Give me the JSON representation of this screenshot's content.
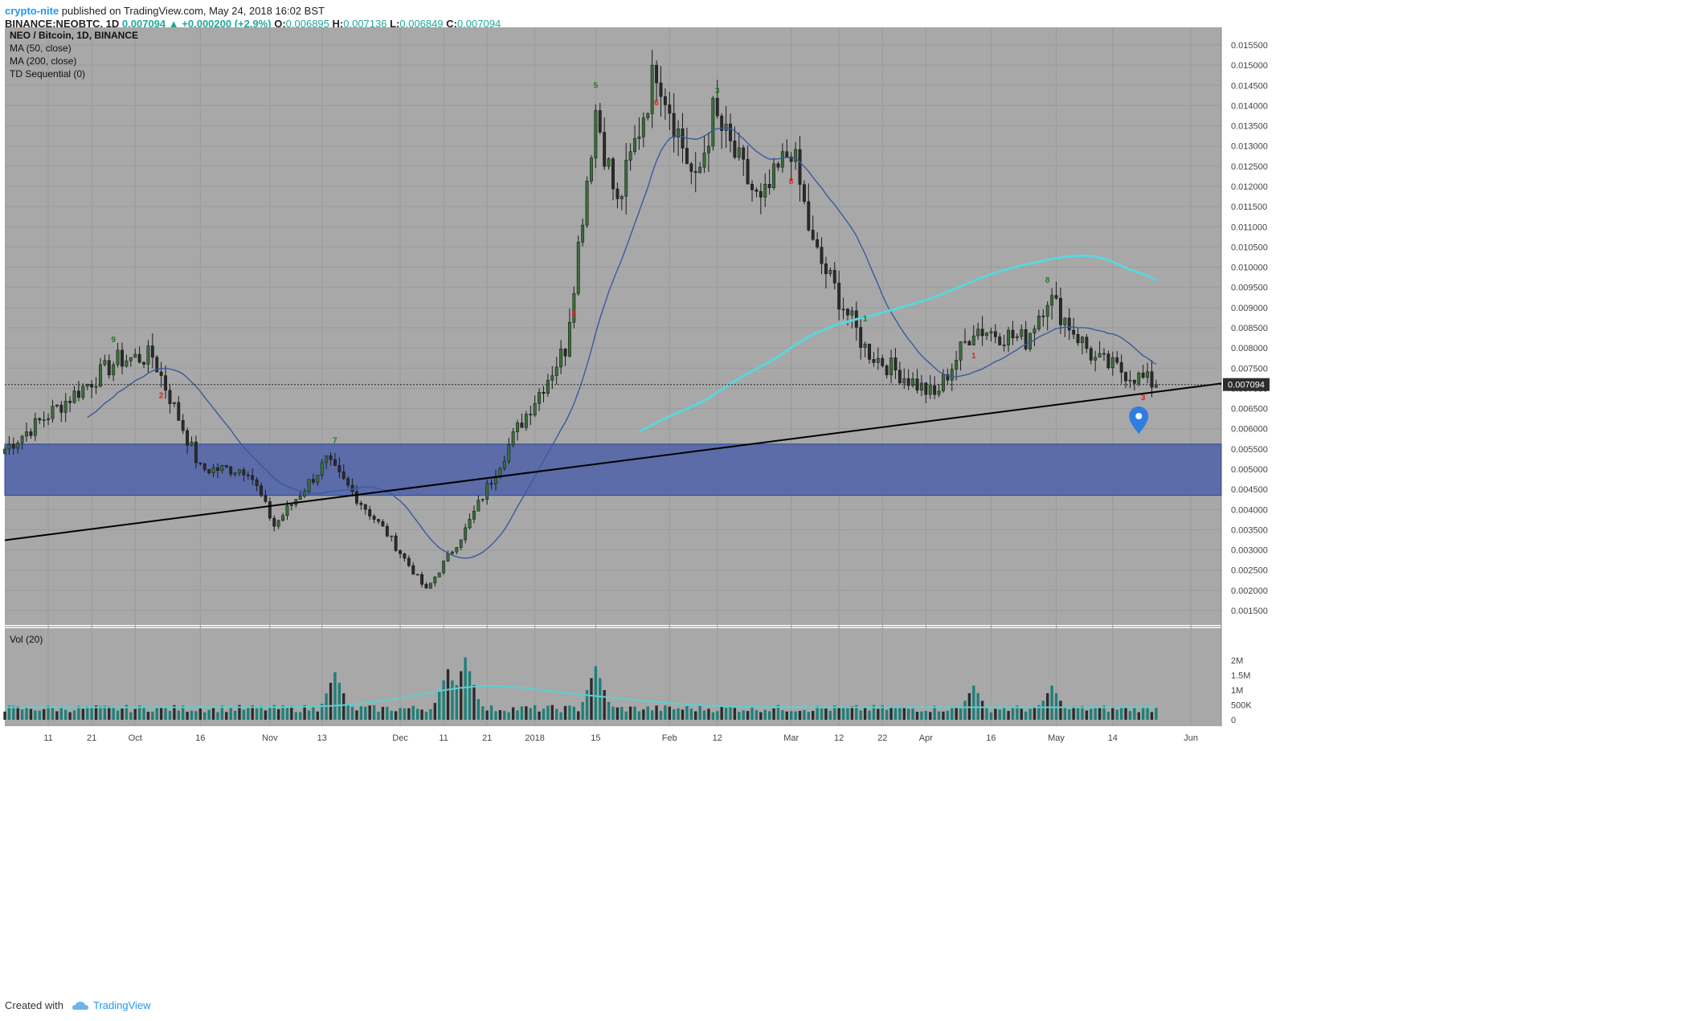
{
  "header": {
    "author": "crypto-nite",
    "published": "published on TradingView.com, May 24, 2018 16:02 BST",
    "symbol": "BINANCE:NEOBTC, 1D",
    "last": "0.007094",
    "change": "+0.000200 (+2.9%)",
    "o_label": "O:",
    "o_value": "0.006895",
    "h_label": "H:",
    "h_value": "0.007136",
    "l_label": "L:",
    "l_value": "0.006849",
    "c_label": "C:",
    "c_value": "0.007094"
  },
  "legend": {
    "title": "NEO / Bitcoin, 1D, BINANCE",
    "ma50": "MA (50, close)",
    "ma200": "MA (200, close)",
    "td": "TD Sequential (0)",
    "vol": "Vol (20)"
  },
  "price_badge": "0.007094",
  "footer": {
    "created": "Created with",
    "brand": "TradingView"
  },
  "colors": {
    "pane_bg": "#a8a8a8",
    "up_candle": "#3a6e3a",
    "down_candle": "#2b2b2b",
    "ma50": "#3a5a9e",
    "ma200": "#5ad6dc",
    "zone": "#4a5fa8",
    "td_buy": "#e02020",
    "td_sell": "#1f7a1f",
    "vol_ma": "#5ecfd0",
    "vol_bar": "#1e7f7a"
  },
  "chart_data": {
    "type": "candlestick",
    "title": "NEO / Bitcoin, 1D, BINANCE",
    "y_ticks": [
      "0.015500",
      "0.015000",
      "0.014500",
      "0.014000",
      "0.013500",
      "0.013000",
      "0.012500",
      "0.012000",
      "0.011500",
      "0.011000",
      "0.010500",
      "0.010000",
      "0.009500",
      "0.009000",
      "0.008500",
      "0.008000",
      "0.007500",
      "0.007000",
      "0.006500",
      "0.006000",
      "0.005500",
      "0.005000",
      "0.004500",
      "0.004000",
      "0.003500",
      "0.003000",
      "0.002500",
      "0.002000",
      "0.001500"
    ],
    "ylim": [
      0.00125,
      0.0159
    ],
    "x_ticks": [
      "11",
      "21",
      "Oct",
      "16",
      "Nov",
      "13",
      "Dec",
      "11",
      "21",
      "2018",
      "15",
      "Feb",
      "12",
      "Mar",
      "12",
      "22",
      "Apr",
      "16",
      "May",
      "14",
      "Jun"
    ],
    "x_range": [
      "2017-09-01",
      "2018-06-08"
    ],
    "close_series_keypoints": [
      {
        "date": "2017-09-01",
        "close": 0.0055
      },
      {
        "date": "2017-09-27",
        "close": 0.0077
      },
      {
        "date": "2017-10-05",
        "close": 0.0078
      },
      {
        "date": "2017-10-16",
        "close": 0.005
      },
      {
        "date": "2017-10-27",
        "close": 0.005
      },
      {
        "date": "2017-11-02",
        "close": 0.0036
      },
      {
        "date": "2017-11-14",
        "close": 0.0052
      },
      {
        "date": "2017-11-28",
        "close": 0.0034
      },
      {
        "date": "2017-12-07",
        "close": 0.002
      },
      {
        "date": "2017-12-16",
        "close": 0.0035
      },
      {
        "date": "2017-12-28",
        "close": 0.006
      },
      {
        "date": "2018-01-08",
        "close": 0.008
      },
      {
        "date": "2018-01-15",
        "close": 0.0139
      },
      {
        "date": "2018-01-20",
        "close": 0.0115
      },
      {
        "date": "2018-01-29",
        "close": 0.015
      },
      {
        "date": "2018-02-07",
        "close": 0.012
      },
      {
        "date": "2018-02-11",
        "close": 0.0138
      },
      {
        "date": "2018-02-22",
        "close": 0.0115
      },
      {
        "date": "2018-03-01",
        "close": 0.013
      },
      {
        "date": "2018-03-06",
        "close": 0.0105
      },
      {
        "date": "2018-03-18",
        "close": 0.008
      },
      {
        "date": "2018-03-20",
        "close": 0.0078
      },
      {
        "date": "2018-04-03",
        "close": 0.0068
      },
      {
        "date": "2018-04-12",
        "close": 0.0085
      },
      {
        "date": "2018-04-24",
        "close": 0.0082
      },
      {
        "date": "2018-04-29",
        "close": 0.0093
      },
      {
        "date": "2018-05-10",
        "close": 0.0077
      },
      {
        "date": "2018-05-24",
        "close": 0.007094
      }
    ],
    "series": [
      {
        "name": "MA (50, close)"
      },
      {
        "name": "MA (200, close)"
      }
    ],
    "zone": [
      0.00435,
      0.00562
    ],
    "trendline": [
      {
        "date": "2017-09-01",
        "value": 0.00324
      },
      {
        "date": "2018-06-08",
        "value": 0.00712
      }
    ],
    "volume": {
      "label": "Vol (20)",
      "y_ticks": [
        "2M",
        "1.5M",
        "1M",
        "500K",
        "0"
      ],
      "ylim": [
        0,
        2200000
      ],
      "spikes": [
        {
          "date": "2017-10-06",
          "value": 350000
        },
        {
          "date": "2017-11-16",
          "value": 1600000
        },
        {
          "date": "2017-12-12",
          "value": 1700000
        },
        {
          "date": "2017-12-16",
          "value": 2100000
        },
        {
          "date": "2018-01-15",
          "value": 1800000
        },
        {
          "date": "2018-04-12",
          "value": 1150000
        },
        {
          "date": "2018-04-30",
          "value": 1150000
        }
      ]
    }
  }
}
